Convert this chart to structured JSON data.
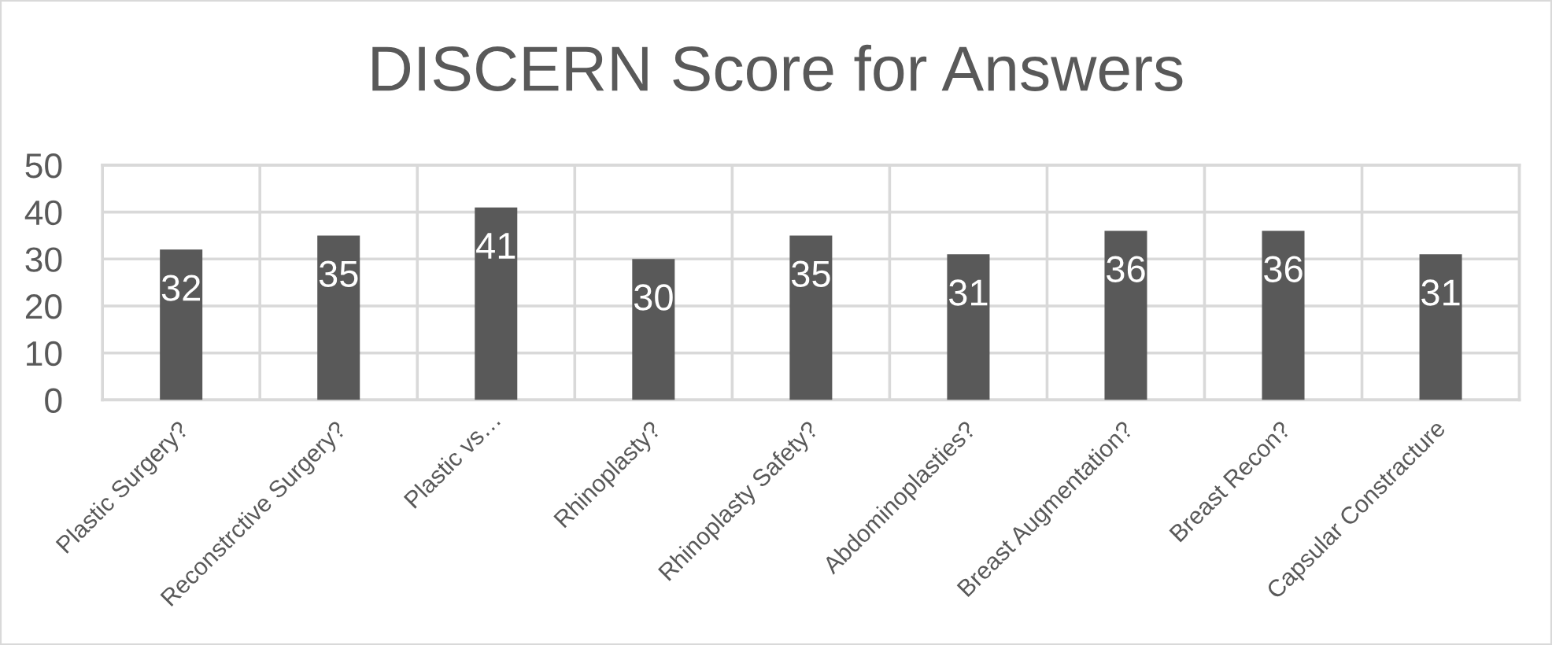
{
  "chart_data": {
    "type": "bar",
    "title": "DISCERN Score for Answers",
    "categories": [
      "Plastic Surgery?",
      "Reconstrctive Surgery?",
      "Plastic vs…",
      "Rhinoplasty?",
      "Rhinoplasty Safety?",
      "Abdominoplasties?",
      "Breast Augmentation?",
      "Breast Recon?",
      "Capsular Constracture"
    ],
    "values": [
      32,
      35,
      41,
      30,
      35,
      31,
      36,
      36,
      31
    ],
    "color": "#595959",
    "ylim": [
      0,
      50
    ],
    "yticks": [
      0,
      10,
      20,
      30,
      40,
      50
    ],
    "grid": true,
    "data_labels": true
  }
}
